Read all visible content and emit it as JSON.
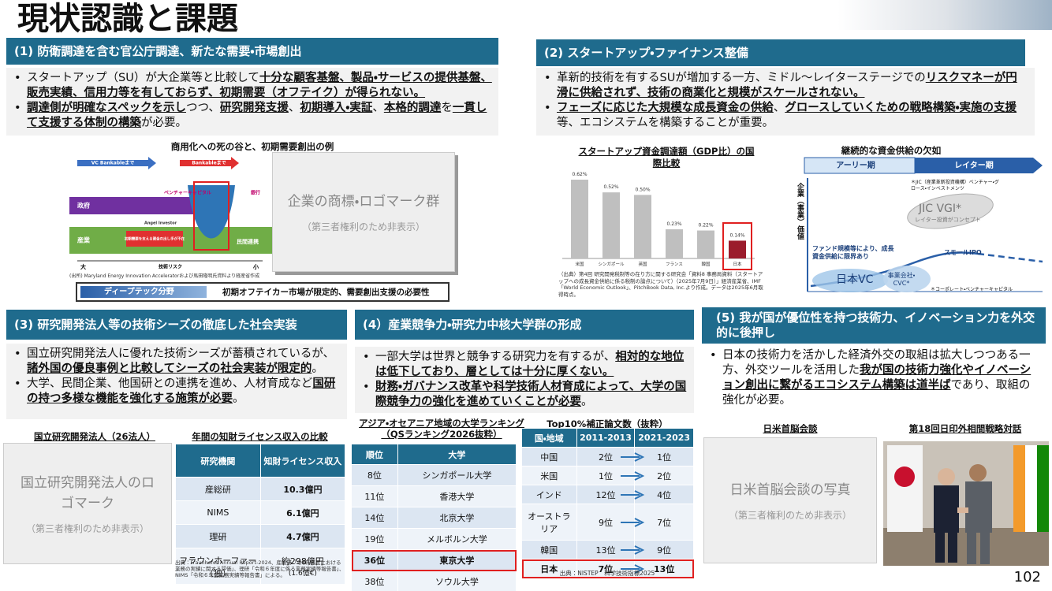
{
  "title": "現状認識と課題",
  "page_number": "102",
  "sections": [
    {
      "heading": "(1) 防衛調達を含む官公庁調達、新たな需要・市場創出",
      "bullets": [
        [
          "スタートアップ（SU）が大企業等と比較して",
          {
            "strong": "十分な顧客基盤、製品・サービスの提供基盤、販売実績、信用力等を有しておらず、初期需要（オフテイク）が得られない。"
          }
        ],
        [
          {
            "strong": "調達側が明確なスペックを示し"
          },
          "つつ、",
          {
            "strong": "研究開発支援"
          },
          "、",
          {
            "strong": "初期導入・実証"
          },
          "、",
          {
            "strong": "本格的調達"
          },
          "を",
          {
            "strong": "一貫して支援する体制の構築"
          },
          "が必要。"
        ]
      ]
    },
    {
      "heading": "(2) スタートアップ・ファイナンス整備",
      "bullets": [
        [
          "革新的技術を有するSUが増加する一方、ミドル～レイターステージでの",
          {
            "strong": "リスクマネーが円滑に供給されず、技術の商業化と規模がスケールされない。"
          }
        ],
        [
          {
            "strong": "フェーズに応じた大規模な成長資金の供給"
          },
          "、",
          {
            "strong": "グロースしていくための戦略構築・実施の支援"
          },
          "等、エコシステムを構築することが重要。"
        ]
      ]
    },
    {
      "heading": "(3) 研究開発法人等の技術シーズの徹底した社会実装",
      "bullets": [
        [
          "国立研究開発法人に優れた技術シーズが蓄積されているが、",
          {
            "strong": "諸外国の優良事例と比較してシーズの社会実装が限定的"
          },
          "。"
        ],
        [
          "大学、民間企業、他国研との連携を進め、人材育成など",
          {
            "strong": "国研の持つ多様な機能を強化する施策が必要"
          },
          "。"
        ]
      ]
    },
    {
      "heading": "(4）産業競争力・研究力中核大学群の形成",
      "bullets": [
        [
          "一部大学は世界と競争する研究力を有するが、",
          {
            "strong": "相対的な地位は低下しており、層としては十分に厚くない。"
          }
        ],
        [
          {
            "strong": "財務・ガバナンス改革や科学技術人材育成によって、大学の国際競争力の強化を進めていくことが必要"
          },
          "。"
        ]
      ]
    },
    {
      "heading": "(5) 我が国が優位性を持つ技術力、イノベーション力を外交的に後押し",
      "bullets": [
        [
          "日本の技術力を活かした経済外交の取組は拡大しつつある一方、外交ツールを活用した",
          {
            "strong": "我が国の技術力強化やイノベーション創出に繋がるエコシステム構築は道半ば"
          },
          "であり、取組の強化が必要。"
        ]
      ]
    }
  ],
  "death_valley": {
    "title": "商用化への死の谷と、初期需要創出の例",
    "labels": [
      "VC Bankableまで",
      "Bankableまで",
      "政府",
      "ベンチャーキャピタル",
      "銀行",
      "産業",
      "Angel Investor",
      "初期需要を支える資金の出し手が不在",
      "民間連携",
      "大",
      "技術リスク",
      "小"
    ],
    "logo_placeholder": "企業の商標・ロゴマーク群",
    "note": "（第三者権利のため非表示）",
    "source": "(出所) Maryland Energy Innovation Acceleratorおよび馬田隆明氏資料より経産省作成",
    "banner_left": "ディープテック分野",
    "banner_right": "初期オフテイカー市場が限定的、需要創出支援の必要性"
  },
  "chart_data": {
    "type": "bar",
    "title": "スタートアップ資金調達額（GDP比）の国際比較",
    "categories": [
      "米国",
      "シンガポール",
      "英国",
      "フランス",
      "韓国",
      "日本"
    ],
    "values": [
      0.62,
      0.52,
      0.5,
      0.23,
      0.22,
      0.14
    ],
    "value_labels": [
      "0.62%",
      "0.52%",
      "0.50%",
      "0.23%",
      "0.22%",
      "0.14%"
    ],
    "colors": [
      "#bfbfbf",
      "#bfbfbf",
      "#bfbfbf",
      "#bfbfbf",
      "#bfbfbf",
      "#9b1c2c"
    ],
    "highlight": 5,
    "source": "（出典）第4回 研究開発税制等の在り方に関する研究会「資料8 事務局資料（スタートアップへの成長資金供給に係る税制の論点について）（2025年7月9日）」経済産業省、IMF「World Economic Outlook」、PitchBook Data, Inc.より作成。データは2025年6月取得時点。"
  },
  "funding_gap": {
    "title": "継続的な資金供給の欠如",
    "early": "アーリー期",
    "later": "レイター期",
    "y_label": "企業（事業）価値",
    "jic_note": "＊JIC（産業革新投資機構）ベンチャー・グロース・インベストメンツ",
    "jic": "JIC VGI*",
    "jic_sub": "レイター投資がコンセプト",
    "limit": "ファンド規模等により、成長資金供給に限界あり",
    "ipo": "スモールIPO",
    "vc": "日本VC",
    "cvc": "事業会社・CVC*",
    "cvc_note": "＊コーポレート・ベンチャーキャピタル"
  },
  "labs": {
    "title": "国立研究開発法人（26法人）",
    "placeholder": "国立研究開発法人のロゴマーク",
    "note": "（第三者権利のため非表示）"
  },
  "license_table": {
    "title": "年間の知財ライセンス収入の比較",
    "columns": [
      "研究機関",
      "知財ライセンス収入"
    ],
    "rows": [
      [
        "産総研",
        "10.3億円"
      ],
      [
        "NIMS",
        "6.1億円"
      ],
      [
        "理研",
        "4.7億円"
      ],
      [
        "フラウンホーファー（独）",
        [
          "約298億円",
          "(1.6億€)"
        ]
      ]
    ],
    "source": "出典：Fraunhofer Annual Report-2024、産総研「令和6年度における業務の実績に関する評価」、理研「令和６年度に係る業務実績等報告書」、NIMS「令和６年度業務実績等報告書」による。"
  },
  "university_ranking": {
    "title": "アジア・オセアニア地域の大学ランキング（QSランキング2026抜粋）",
    "columns": [
      "順位",
      "大学"
    ],
    "rows": [
      [
        "8位",
        "シンガポール大学"
      ],
      [
        "11位",
        "香港大学"
      ],
      [
        "14位",
        "北京大学"
      ],
      [
        "19位",
        "メルボルン大学"
      ],
      [
        "36位",
        "東京大学"
      ],
      [
        "38位",
        "ソウル大学"
      ]
    ],
    "highlight": 4
  },
  "paper_ranking": {
    "title": "Top10%補正論文数（抜粋）",
    "columns": [
      "国・地域",
      "2011-2013",
      "2021-2023"
    ],
    "rows": [
      [
        "中国",
        "2位",
        "1位"
      ],
      [
        "米国",
        "1位",
        "2位"
      ],
      [
        "インド",
        "12位",
        "4位"
      ],
      [
        "オーストラリア",
        "9位",
        "7位"
      ],
      [
        "韓国",
        "13位",
        "9位"
      ],
      [
        "日本",
        "7位",
        "13位"
      ]
    ],
    "highlight": 5,
    "source": "出典：NISTEP　科学技術指標2025"
  },
  "summit": {
    "title": "日米首脳会談",
    "placeholder": "日米首脳会談の写真",
    "note": "（第三者権利のため非表示）"
  },
  "dialogue": {
    "title": "第18回日印外相間戦略対話"
  }
}
